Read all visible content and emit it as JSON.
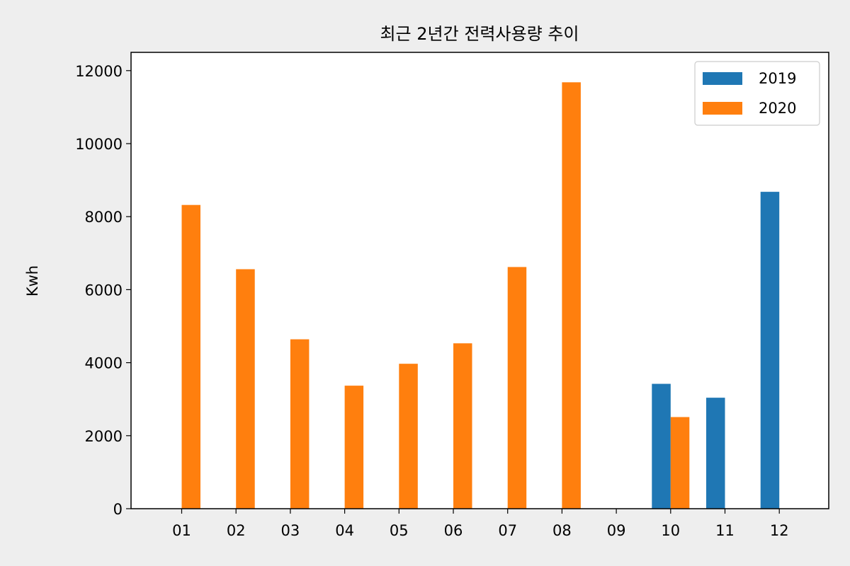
{
  "colors": {
    "background": "#eeeeee",
    "plot_background": "#ffffff"
  },
  "chart_data": {
    "type": "bar",
    "title": "최근 2년간 전력사용량 추이",
    "xlabel": "",
    "ylabel": "Kwh",
    "categories": [
      "01",
      "02",
      "03",
      "04",
      "05",
      "06",
      "07",
      "08",
      "09",
      "10",
      "11",
      "12"
    ],
    "series": [
      {
        "name": "2019",
        "color": "#1f77b4",
        "values": [
          null,
          null,
          null,
          null,
          null,
          null,
          null,
          null,
          null,
          3420,
          3040,
          8680
        ]
      },
      {
        "name": "2020",
        "color": "#ff7f0e",
        "values": [
          8320,
          6560,
          4640,
          3370,
          3970,
          4530,
          6620,
          11680,
          null,
          2510,
          null,
          null
        ]
      }
    ],
    "ylim": [
      0,
      12500
    ],
    "yticks": [
      0,
      2000,
      4000,
      6000,
      8000,
      10000,
      12000
    ],
    "grid": false,
    "legend": "top-right"
  }
}
